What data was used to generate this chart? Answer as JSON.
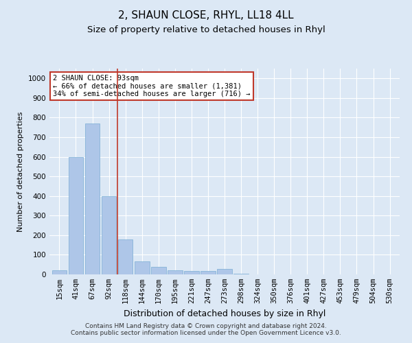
{
  "title": "2, SHAUN CLOSE, RHYL, LL18 4LL",
  "subtitle": "Size of property relative to detached houses in Rhyl",
  "xlabel": "Distribution of detached houses by size in Rhyl",
  "ylabel": "Number of detached properties",
  "footer_line1": "Contains HM Land Registry data © Crown copyright and database right 2024.",
  "footer_line2": "Contains public sector information licensed under the Open Government Licence v3.0.",
  "annotation_line1": "2 SHAUN CLOSE: 93sqm",
  "annotation_line2": "← 66% of detached houses are smaller (1,381)",
  "annotation_line3": "34% of semi-detached houses are larger (716) →",
  "bar_color": "#aec6e8",
  "bar_edge_color": "#7aadd4",
  "vline_color": "#c0392b",
  "background_color": "#dce8f5",
  "annotation_box_color": "#ffffff",
  "annotation_box_edge": "#c0392b",
  "categories": [
    "15sqm",
    "41sqm",
    "67sqm",
    "92sqm",
    "118sqm",
    "144sqm",
    "170sqm",
    "195sqm",
    "221sqm",
    "247sqm",
    "273sqm",
    "298sqm",
    "324sqm",
    "350sqm",
    "376sqm",
    "401sqm",
    "427sqm",
    "453sqm",
    "479sqm",
    "504sqm",
    "530sqm"
  ],
  "values": [
    20,
    600,
    770,
    400,
    180,
    68,
    40,
    22,
    18,
    18,
    28,
    5,
    0,
    0,
    0,
    0,
    0,
    0,
    0,
    0,
    0
  ],
  "vline_x": 3.5,
  "ylim": [
    0,
    1050
  ],
  "yticks": [
    0,
    100,
    200,
    300,
    400,
    500,
    600,
    700,
    800,
    900,
    1000
  ],
  "grid_color": "#ffffff",
  "title_fontsize": 11,
  "subtitle_fontsize": 9.5,
  "ylabel_fontsize": 8,
  "xlabel_fontsize": 9,
  "tick_fontsize": 7.5,
  "footer_fontsize": 6.5,
  "bar_width": 0.9
}
